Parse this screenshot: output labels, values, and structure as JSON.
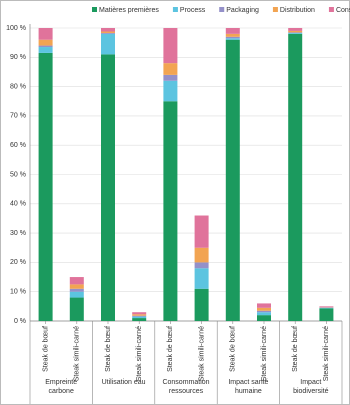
{
  "chart_data": {
    "type": "stacked-bar",
    "categories": [
      "Steak de bœuf",
      "Steak simili-carné",
      "Steak de bœuf",
      "Steak simili-carné",
      "Steak de bœuf",
      "Steak simili-carné",
      "Steak de bœuf",
      "Steak simili-carné",
      "Steak de bœuf",
      "Steak simili-carné"
    ],
    "groups": [
      "Empreinte carbone",
      "Utilisation eau",
      "Consommation ressources",
      "Impact santé humaine",
      "Impact biodiversité"
    ],
    "series": [
      {
        "name": "Matières premières",
        "color": "#1b9a5e",
        "values": [
          91.5,
          8,
          91,
          1,
          75,
          11,
          96,
          2,
          98,
          4.3
        ]
      },
      {
        "name": "Process",
        "color": "#5cc4e0",
        "values": [
          2,
          2,
          7,
          0.5,
          7,
          7,
          0.5,
          1,
          0.3,
          0.2
        ]
      },
      {
        "name": "Packaging",
        "color": "#9490c9",
        "values": [
          0.5,
          1,
          0.3,
          0.3,
          2,
          2,
          0.5,
          0.5,
          0.2,
          0.1
        ]
      },
      {
        "name": "Distribution",
        "color": "#f2a452",
        "values": [
          2,
          1.5,
          0.5,
          0.5,
          4,
          5,
          1,
          1,
          0.5,
          0.1
        ]
      },
      {
        "name": "Consommation",
        "color": "#e0739b",
        "values": [
          4,
          2.5,
          1.2,
          0.7,
          12,
          11,
          2,
          1.5,
          1,
          0.3
        ]
      }
    ],
    "ylim": [
      0,
      100
    ],
    "yticks": [
      {
        "value": 0,
        "label": "0 %"
      },
      {
        "value": 10,
        "label": "10 %"
      },
      {
        "value": 20,
        "label": "20 %"
      },
      {
        "value": 30,
        "label": "30 %"
      },
      {
        "value": 40,
        "label": "40 %"
      },
      {
        "value": 50,
        "label": "50 %"
      },
      {
        "value": 60,
        "label": "60 %"
      },
      {
        "value": 70,
        "label": "70 %"
      },
      {
        "value": 80,
        "label": "80 %"
      },
      {
        "value": 90,
        "label": "90 %"
      },
      {
        "value": 100,
        "label": "100 %"
      }
    ],
    "grid": true,
    "legend": "top"
  }
}
